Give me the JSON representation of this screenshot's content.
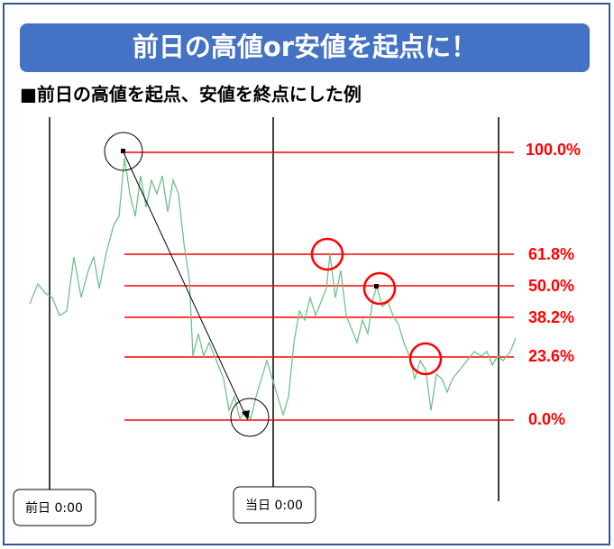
{
  "header": {
    "title": "前日の高値or安値を起点に！"
  },
  "subtitle": "■前日の高値を起点、安値を終点にした例",
  "levels": [
    "100.0%",
    "61.8%",
    "50.0%",
    "38.2%",
    "23.6%",
    "0.0%"
  ],
  "time_labels": [
    "前日 0:00",
    "当日 0:00"
  ]
}
